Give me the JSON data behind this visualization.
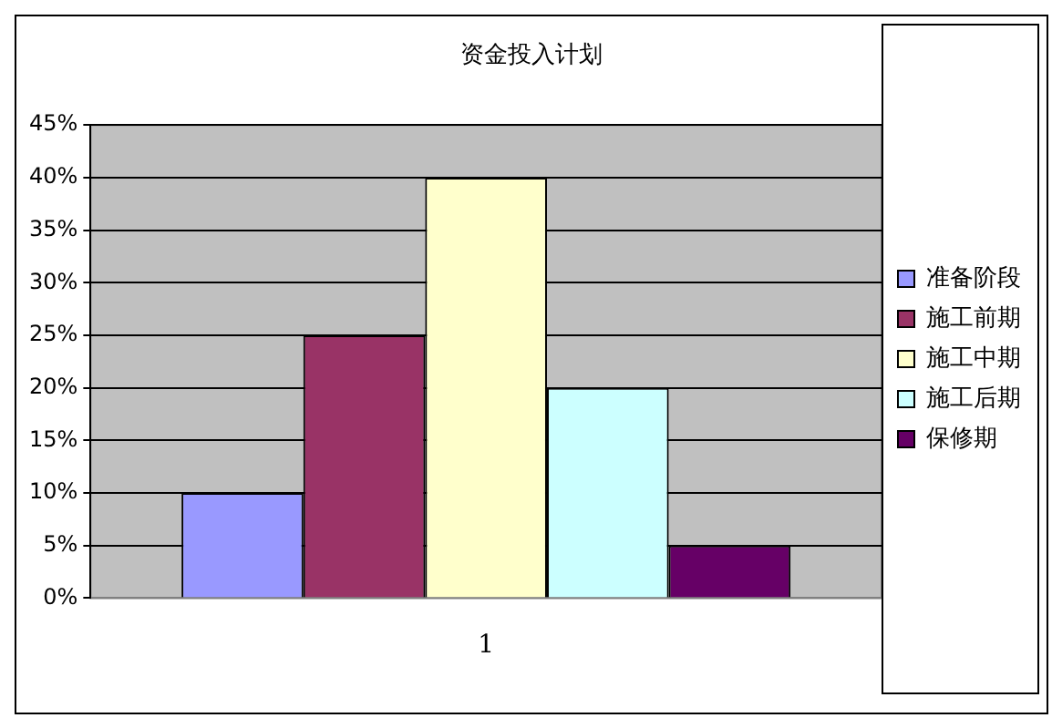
{
  "chart_data": {
    "type": "bar",
    "title": "资金投入计划",
    "categories": [
      "1"
    ],
    "series": [
      {
        "name": "准备阶段",
        "color": "#9999ff",
        "values": [
          10
        ]
      },
      {
        "name": "施工前期",
        "color": "#993366",
        "values": [
          25
        ]
      },
      {
        "name": "施工中期",
        "color": "#ffffcc",
        "values": [
          40
        ]
      },
      {
        "name": "施工后期",
        "color": "#ccffff",
        "values": [
          20
        ]
      },
      {
        "name": "保修期",
        "color": "#660066",
        "values": [
          5
        ]
      }
    ],
    "ylim": [
      0,
      45
    ],
    "yticks": [
      {
        "value": 0,
        "label": "0%"
      },
      {
        "value": 5,
        "label": "5%"
      },
      {
        "value": 10,
        "label": "10%"
      },
      {
        "value": 15,
        "label": "15%"
      },
      {
        "value": 20,
        "label": "20%"
      },
      {
        "value": 25,
        "label": "25%"
      },
      {
        "value": 30,
        "label": "30%"
      },
      {
        "value": 35,
        "label": "35%"
      },
      {
        "value": 40,
        "label": "40%"
      },
      {
        "value": 45,
        "label": "45%"
      }
    ],
    "grid": "y",
    "legend": "right"
  }
}
